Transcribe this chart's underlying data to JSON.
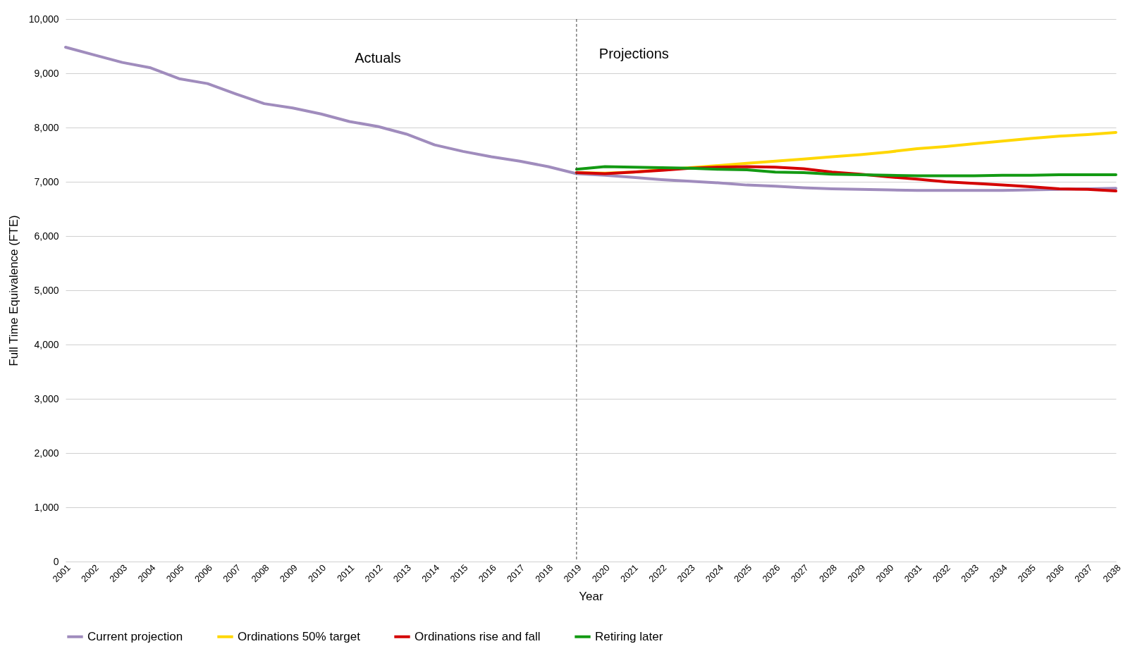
{
  "chart_data": {
    "type": "line",
    "xlabel": "Year",
    "ylabel": "Full Time Equivalence (FTE)",
    "categories": [
      "2001",
      "2002",
      "2003",
      "2004",
      "2005",
      "2006",
      "2007",
      "2008",
      "2009",
      "2010",
      "2011",
      "2012",
      "2013",
      "2014",
      "2015",
      "2016",
      "2017",
      "2018",
      "2019",
      "2020",
      "2021",
      "2022",
      "2023",
      "2024",
      "2025",
      "2026",
      "2027",
      "2028",
      "2029",
      "2030",
      "2031",
      "2032",
      "2033",
      "2034",
      "2035",
      "2036",
      "2037",
      "2038"
    ],
    "series": [
      {
        "name": "Current projection",
        "color": "#a08cbd",
        "values": [
          9480,
          9340,
          9200,
          9100,
          8900,
          8810,
          8620,
          8440,
          8360,
          8250,
          8110,
          8020,
          7880,
          7680,
          7560,
          7460,
          7380,
          7280,
          7150,
          7120,
          7080,
          7040,
          7010,
          6980,
          6940,
          6920,
          6890,
          6870,
          6860,
          6850,
          6840,
          6840,
          6840,
          6840,
          6850,
          6860,
          6870,
          6880
        ]
      },
      {
        "name": "Ordinations 50% target",
        "color": "#ffd700",
        "values": [
          null,
          null,
          null,
          null,
          null,
          null,
          null,
          null,
          null,
          null,
          null,
          null,
          null,
          null,
          null,
          null,
          null,
          null,
          7170,
          7160,
          7180,
          7220,
          7260,
          7300,
          7340,
          7380,
          7420,
          7460,
          7500,
          7550,
          7610,
          7650,
          7700,
          7750,
          7800,
          7840,
          7870,
          7910
        ]
      },
      {
        "name": "Ordinations rise and fall",
        "color": "#d40000",
        "values": [
          null,
          null,
          null,
          null,
          null,
          null,
          null,
          null,
          null,
          null,
          null,
          null,
          null,
          null,
          null,
          null,
          null,
          null,
          7170,
          7150,
          7180,
          7210,
          7250,
          7270,
          7280,
          7270,
          7240,
          7180,
          7140,
          7090,
          7050,
          7000,
          6970,
          6940,
          6910,
          6870,
          6860,
          6830
        ]
      },
      {
        "name": "Retiring later",
        "color": "#139a13",
        "values": [
          null,
          null,
          null,
          null,
          null,
          null,
          null,
          null,
          null,
          null,
          null,
          null,
          null,
          null,
          null,
          null,
          null,
          null,
          7230,
          7280,
          7270,
          7260,
          7250,
          7230,
          7220,
          7180,
          7170,
          7140,
          7130,
          7120,
          7110,
          7110,
          7110,
          7120,
          7120,
          7130,
          7130,
          7130
        ]
      }
    ],
    "ylim": [
      0,
      10000
    ],
    "yticks": [
      0,
      {
        "value": 1000,
        "label": "1,000"
      },
      {
        "value": 2000,
        "label": "2,000"
      },
      {
        "value": 3000,
        "label": "3,000"
      },
      {
        "value": 4000,
        "label": "4,000"
      },
      {
        "value": 5000,
        "label": "5,000"
      },
      {
        "value": 6000,
        "label": "6,000"
      },
      {
        "value": 7000,
        "label": "7,000"
      },
      {
        "value": 8000,
        "label": "8,000"
      },
      {
        "value": 9000,
        "label": "9,000"
      },
      {
        "value": 10000,
        "label": "10,000"
      }
    ],
    "grid": "y",
    "legend": "bottom",
    "line_style": "solid",
    "ref_lines": [
      {
        "axis": "x",
        "value": "2019",
        "color": "#404040",
        "line_style": "dashed"
      }
    ],
    "annotations": [
      "Actuals",
      "Projections"
    ]
  }
}
